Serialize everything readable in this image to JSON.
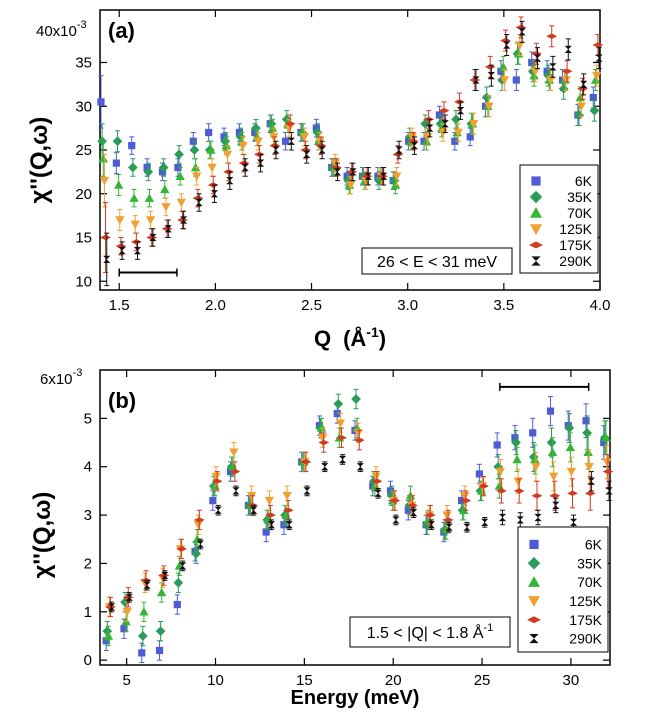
{
  "chart_data": [
    {
      "type": "scatter",
      "panel_label": "(a)",
      "xlabel_main": "Q",
      "xlabel_unit": "(Å",
      "xlabel_sup": "-1",
      "xlabel_close": ")",
      "ylabel": "χ''(Q,ω)",
      "y_multiplier": "40x10",
      "y_multiplier_exp": "-3",
      "xlim": [
        1.4,
        4.0
      ],
      "ylim": [
        9,
        41
      ],
      "x_ticks": [
        1.5,
        2.0,
        2.5,
        3.0,
        3.5,
        4.0
      ],
      "x_tick_labels": [
        "1.5",
        "2.0",
        "2.5",
        "3.0",
        "3.5",
        "4.0"
      ],
      "y_ticks": [
        10,
        15,
        20,
        25,
        30,
        35
      ],
      "y_tick_labels": [
        "10",
        "15",
        "20",
        "25",
        "30",
        "35"
      ],
      "annotation": "26 < E < 31 meV",
      "resolution_bar": [
        1.5,
        1.8,
        11
      ],
      "x": [
        1.42,
        1.5,
        1.58,
        1.66,
        1.74,
        1.82,
        1.9,
        1.98,
        2.06,
        2.14,
        2.22,
        2.3,
        2.38,
        2.46,
        2.54,
        2.62,
        2.7,
        2.78,
        2.86,
        2.94,
        3.02,
        3.1,
        3.18,
        3.26,
        3.34,
        3.42,
        3.5,
        3.58,
        3.66,
        3.74,
        3.82,
        3.9,
        3.98
      ],
      "series": [
        {
          "name": "6K",
          "values": [
            30.5,
            23.5,
            25.5,
            23,
            22.5,
            23,
            26,
            27,
            26.5,
            27,
            27,
            28,
            26,
            27,
            27.5,
            23,
            22,
            22,
            22,
            21.5,
            26,
            26,
            29,
            26,
            26.5,
            30,
            34,
            33,
            35,
            34,
            33,
            29,
            31
          ],
          "errors": [
            3,
            1.2,
            1,
            1,
            1,
            1,
            1,
            1,
            1,
            1,
            1,
            1,
            1,
            1,
            1,
            1,
            1,
            1,
            1,
            1,
            1,
            1,
            1,
            1,
            1,
            1.2,
            1.2,
            1.2,
            1.2,
            1.2,
            1.2,
            1.2,
            1.2
          ]
        },
        {
          "name": "35K",
          "values": [
            26,
            26,
            23,
            22.5,
            23,
            24.5,
            25,
            25,
            26,
            26.5,
            27.5,
            28,
            28.5,
            27,
            27,
            23,
            21.5,
            22,
            21.5,
            21.5,
            26.5,
            28,
            28,
            28.5,
            28,
            31,
            33,
            36,
            34,
            33.5,
            32,
            29,
            29.5
          ],
          "errors": [
            2,
            1.2,
            1,
            1,
            1,
            1,
            1,
            1,
            1,
            1,
            1,
            1,
            1,
            1,
            1,
            1,
            1,
            1,
            1,
            1,
            1,
            1,
            1,
            1,
            1.2,
            1.2,
            1.2,
            1.2,
            1.2,
            1.2,
            1.2,
            1.2,
            1.2
          ]
        },
        {
          "name": "70K",
          "values": [
            24,
            21,
            19.5,
            19.5,
            20.5,
            22,
            23,
            25,
            25.5,
            26,
            26.5,
            27.5,
            28,
            27,
            26,
            23,
            21,
            21.5,
            22,
            21,
            26,
            26,
            27.5,
            27,
            28,
            30,
            34.5,
            36,
            33.5,
            33,
            33,
            31,
            33
          ],
          "errors": [
            2,
            1.2,
            1,
            1,
            1,
            1,
            1,
            1,
            1,
            1,
            1,
            1,
            1,
            1,
            1,
            1,
            1,
            1,
            1,
            1,
            1,
            1,
            1,
            1,
            1.2,
            1.2,
            1.2,
            1.2,
            1.2,
            1.2,
            1.2,
            1.2,
            1.2
          ]
        },
        {
          "name": "125K",
          "values": [
            21.5,
            17,
            16.5,
            17,
            18.5,
            19,
            22,
            23,
            24.5,
            25.5,
            26,
            26.5,
            27.5,
            26.5,
            26,
            23.5,
            21,
            21.5,
            22,
            22,
            26.5,
            26.5,
            27,
            27,
            28,
            30,
            33,
            37,
            34,
            33,
            33,
            30,
            33.5
          ],
          "errors": [
            3,
            1.2,
            1,
            1,
            1,
            1,
            1,
            1,
            1,
            1,
            1,
            1,
            1,
            1,
            1,
            1,
            1,
            1,
            1,
            1,
            1,
            1,
            1,
            1,
            1.2,
            1.2,
            1.2,
            1.2,
            1.2,
            1.2,
            1.2,
            1.2,
            1.2
          ]
        },
        {
          "name": "175K",
          "values": [
            15,
            14,
            14.5,
            15,
            16,
            17,
            19.5,
            21,
            22.5,
            23.5,
            24.5,
            25.5,
            28,
            25,
            25.5,
            23,
            22.5,
            22,
            22,
            24.5,
            26,
            28.5,
            29.5,
            30.5,
            33,
            34.5,
            37.5,
            39,
            36,
            38,
            34,
            32,
            37
          ],
          "errors": [
            4,
            1,
            1,
            1,
            1,
            1,
            1,
            1,
            1,
            1,
            1,
            1,
            1,
            1,
            1,
            1,
            1,
            1,
            1,
            1,
            1,
            1,
            1,
            1,
            1.2,
            1.2,
            1.2,
            1.2,
            1.2,
            1.2,
            1.2,
            1.2,
            1.2
          ]
        },
        {
          "name": "290K",
          "values": [
            12.5,
            13.5,
            13.5,
            15,
            16,
            17,
            19,
            20,
            21.5,
            23,
            23.5,
            25,
            26,
            24.5,
            25,
            22.5,
            22.5,
            22,
            22,
            25,
            25.5,
            27.5,
            28,
            29.5,
            33,
            33.5,
            37,
            38.5,
            35.5,
            34.5,
            36.5,
            32.5,
            35.5
          ],
          "errors": [
            3,
            1,
            1,
            1,
            1,
            1,
            1,
            1,
            1,
            1,
            1,
            1,
            1,
            1,
            1,
            1,
            1,
            1,
            1,
            1,
            1,
            1,
            1,
            1,
            1.2,
            1.2,
            1.2,
            1.2,
            1.2,
            1.2,
            1.2,
            1.2,
            1.2
          ]
        }
      ]
    },
    {
      "type": "scatter",
      "panel_label": "(b)",
      "xlabel": "Energy (meV)",
      "ylabel": "χ''(Q,ω)",
      "y_multiplier": "6x10",
      "y_multiplier_exp": "-3",
      "xlim": [
        3.5,
        32.2
      ],
      "ylim": [
        -0.1,
        6.0
      ],
      "x_ticks": [
        5,
        10,
        15,
        20,
        25,
        30
      ],
      "x_tick_labels": [
        "5",
        "10",
        "15",
        "20",
        "25",
        "30"
      ],
      "y_ticks": [
        0,
        1,
        2,
        3,
        4,
        5
      ],
      "y_tick_labels": [
        "0",
        "1",
        "2",
        "3",
        "4",
        "5"
      ],
      "annotation_prefix": "1.5 < |Q| < 1.8 Å",
      "annotation_sup": "-1",
      "resolution_bar": [
        26,
        31,
        5.65
      ],
      "x": [
        4,
        5,
        6,
        7,
        8,
        9,
        10,
        11,
        12,
        13,
        14,
        15,
        16,
        17,
        18,
        19,
        20,
        21,
        22,
        23,
        24,
        25,
        26,
        27,
        28,
        29,
        30,
        31,
        32
      ],
      "series": [
        {
          "name": "6K",
          "values": [
            0.4,
            0.65,
            0.15,
            0.2,
            1.15,
            2.25,
            3.3,
            3.9,
            3.2,
            2.65,
            2.8,
            4.1,
            4.85,
            5.1,
            4.75,
            3.6,
            3.5,
            3.1,
            2.8,
            2.65,
            3.3,
            3.85,
            4.45,
            4.6,
            4.7,
            5.15,
            4.85,
            4.95,
            4.5
          ],
          "errors": [
            0.2,
            0.2,
            0.2,
            0.2,
            0.2,
            0.2,
            0.2,
            0.2,
            0.2,
            0.2,
            0.2,
            0.2,
            0.2,
            0.2,
            0.2,
            0.2,
            0.2,
            0.2,
            0.2,
            0.2,
            0.2,
            0.2,
            0.25,
            0.25,
            0.3,
            0.3,
            0.3,
            0.35,
            0.35
          ]
        },
        {
          "name": "35K",
          "values": [
            0.6,
            1.2,
            0.5,
            0.6,
            1.6,
            2.2,
            3.6,
            4.0,
            3.2,
            2.9,
            3.0,
            4.1,
            4.8,
            5.3,
            5.4,
            3.7,
            3.4,
            3.2,
            2.8,
            2.7,
            3.1,
            3.5,
            4.0,
            4.5,
            4.2,
            4.5,
            4.8,
            4.7,
            4.6
          ],
          "errors": [
            0.2,
            0.2,
            0.2,
            0.2,
            0.2,
            0.2,
            0.2,
            0.2,
            0.2,
            0.2,
            0.2,
            0.2,
            0.2,
            0.2,
            0.2,
            0.2,
            0.2,
            0.2,
            0.2,
            0.2,
            0.2,
            0.2,
            0.25,
            0.25,
            0.3,
            0.3,
            0.3,
            0.35,
            0.35
          ]
        },
        {
          "name": "70K",
          "values": [
            0.5,
            0.8,
            1.0,
            1.4,
            1.95,
            2.5,
            3.6,
            4.0,
            3.2,
            2.9,
            3.0,
            4.1,
            4.8,
            4.6,
            4.8,
            3.6,
            3.3,
            3.4,
            2.9,
            2.7,
            3.1,
            3.5,
            3.6,
            4.15,
            4.15,
            4.3,
            4.4,
            4.3,
            4.6
          ],
          "errors": [
            0.2,
            0.2,
            0.2,
            0.2,
            0.2,
            0.2,
            0.2,
            0.2,
            0.2,
            0.2,
            0.2,
            0.2,
            0.2,
            0.2,
            0.2,
            0.2,
            0.2,
            0.2,
            0.2,
            0.2,
            0.2,
            0.2,
            0.25,
            0.25,
            0.3,
            0.3,
            0.3,
            0.35,
            0.35
          ]
        },
        {
          "name": "125K",
          "values": [
            1.1,
            1.0,
            1.6,
            1.7,
            2.3,
            2.8,
            3.8,
            4.3,
            3.4,
            3.3,
            3.4,
            4.1,
            4.6,
            4.9,
            4.7,
            3.8,
            3.3,
            3.2,
            3.0,
            3.0,
            3.4,
            3.6,
            3.9,
            3.7,
            4.0,
            3.8,
            3.9,
            4.0,
            4.1
          ],
          "errors": [
            0.2,
            0.2,
            0.2,
            0.2,
            0.2,
            0.2,
            0.2,
            0.2,
            0.2,
            0.2,
            0.2,
            0.2,
            0.2,
            0.2,
            0.2,
            0.2,
            0.2,
            0.2,
            0.2,
            0.2,
            0.2,
            0.2,
            0.25,
            0.25,
            0.3,
            0.3,
            0.3,
            0.35,
            0.35
          ]
        },
        {
          "name": "175K",
          "values": [
            1.1,
            1.3,
            1.65,
            1.75,
            2.3,
            2.9,
            3.7,
            3.9,
            3.2,
            3.0,
            3.1,
            4.1,
            4.5,
            4.6,
            4.55,
            3.7,
            3.3,
            3.2,
            3.0,
            2.9,
            3.3,
            3.6,
            3.5,
            3.5,
            3.4,
            3.4,
            3.45,
            3.45,
            3.9
          ],
          "errors": [
            0.2,
            0.2,
            0.2,
            0.2,
            0.2,
            0.2,
            0.2,
            0.2,
            0.2,
            0.2,
            0.2,
            0.2,
            0.2,
            0.2,
            0.2,
            0.2,
            0.2,
            0.2,
            0.2,
            0.2,
            0.2,
            0.2,
            0.25,
            0.25,
            0.3,
            0.3,
            0.3,
            0.35,
            0.35
          ]
        },
        {
          "name": "290K",
          "values": [
            1.1,
            1.3,
            1.55,
            1.75,
            1.95,
            2.4,
            3.1,
            3.5,
            3.1,
            2.8,
            2.8,
            3.5,
            4.0,
            4.15,
            4.0,
            3.45,
            2.9,
            3.05,
            2.8,
            2.75,
            2.75,
            2.85,
            2.95,
            2.9,
            2.95,
            3.2,
            2.85,
            3.7,
            3.5
          ],
          "errors": [
            0.1,
            0.1,
            0.1,
            0.1,
            0.1,
            0.1,
            0.1,
            0.1,
            0.1,
            0.1,
            0.1,
            0.1,
            0.1,
            0.1,
            0.1,
            0.1,
            0.1,
            0.1,
            0.1,
            0.1,
            0.1,
            0.1,
            0.15,
            0.15,
            0.15,
            0.15,
            0.15,
            0.2,
            0.2
          ]
        }
      ]
    }
  ],
  "legend": [
    {
      "label": "6K",
      "color": "#4f5bd5",
      "marker": "square"
    },
    {
      "label": "35K",
      "color": "#2a9b58",
      "marker": "diamond"
    },
    {
      "label": "70K",
      "color": "#35b535",
      "marker": "triangle-up"
    },
    {
      "label": "125K",
      "color": "#f0a030",
      "marker": "triangle-down"
    },
    {
      "label": "175K",
      "color": "#d23a22",
      "marker": "diamond-wide"
    },
    {
      "label": "290K",
      "color": "#111111",
      "marker": "hourglass"
    }
  ]
}
